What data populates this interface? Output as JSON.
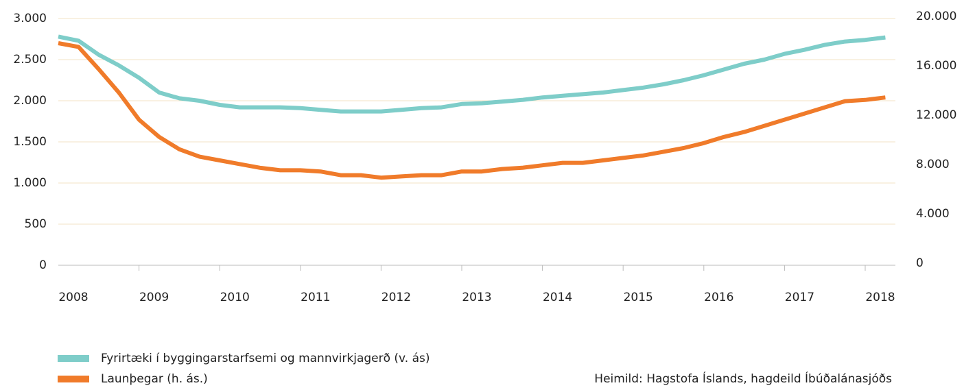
{
  "chart_data": {
    "type": "line",
    "categories": [
      "2008",
      null,
      null,
      null,
      "2009",
      null,
      null,
      null,
      "2010",
      null,
      null,
      null,
      "2011",
      null,
      null,
      null,
      "2012",
      null,
      null,
      null,
      "2013",
      null,
      null,
      null,
      "2014",
      null,
      null,
      null,
      "2015",
      null,
      null,
      null,
      "2016",
      null,
      null,
      null,
      "2017",
      null,
      null,
      null,
      "2018",
      null
    ],
    "series": [
      {
        "name": "Fyrirtæki í byggingarstarfsemi og mannvirkjagerð (v. ás)",
        "color": "#7ecdc9",
        "axis": "y",
        "values": [
          2780,
          2730,
          2560,
          2430,
          2280,
          2100,
          2030,
          2000,
          1950,
          1920,
          1920,
          1920,
          1910,
          1890,
          1870,
          1870,
          1870,
          1890,
          1910,
          1920,
          1960,
          1970,
          1990,
          2010,
          2040,
          2060,
          2080,
          2100,
          2130,
          2160,
          2200,
          2250,
          2310,
          2380,
          2450,
          2500,
          2570,
          2620,
          2680,
          2720,
          2740,
          2770
        ]
      },
      {
        "name": "Launþegar (h. ás.)",
        "color": "#f07b2a",
        "axis": "y2",
        "values": [
          18000,
          17700,
          15900,
          14000,
          11800,
          10400,
          9400,
          8800,
          8500,
          8200,
          7900,
          7700,
          7700,
          7600,
          7300,
          7300,
          7100,
          7200,
          7300,
          7300,
          7600,
          7600,
          7800,
          7900,
          8100,
          8300,
          8300,
          8500,
          8700,
          8900,
          9200,
          9500,
          9900,
          10400,
          10800,
          11300,
          11800,
          12300,
          12800,
          13300,
          13400,
          13600
        ]
      }
    ],
    "ylim": [
      0,
      3000
    ],
    "yticks": [
      0,
      500,
      {
        "value": 1000,
        "label": "1.000"
      },
      {
        "value": 1500,
        "label": "1.500"
      },
      {
        "value": 2000,
        "label": "2.000"
      },
      {
        "value": 2500,
        "label": "2.500"
      },
      {
        "value": 3000,
        "label": "3.000"
      }
    ],
    "y2lim": [
      0,
      20000
    ],
    "y2ticks": [
      0,
      {
        "value": 4000,
        "label": "4.000"
      },
      {
        "value": 8000,
        "label": "8.000"
      },
      {
        "value": 12000,
        "label": "12.000"
      },
      {
        "value": 16000,
        "label": "16.000"
      },
      {
        "value": 20000,
        "label": "20.000"
      }
    ],
    "grid": true,
    "legend": "bottom-left",
    "source": "Heimild: Hagstofa Íslands, hagdeild Íbúðalánasjóðs"
  }
}
